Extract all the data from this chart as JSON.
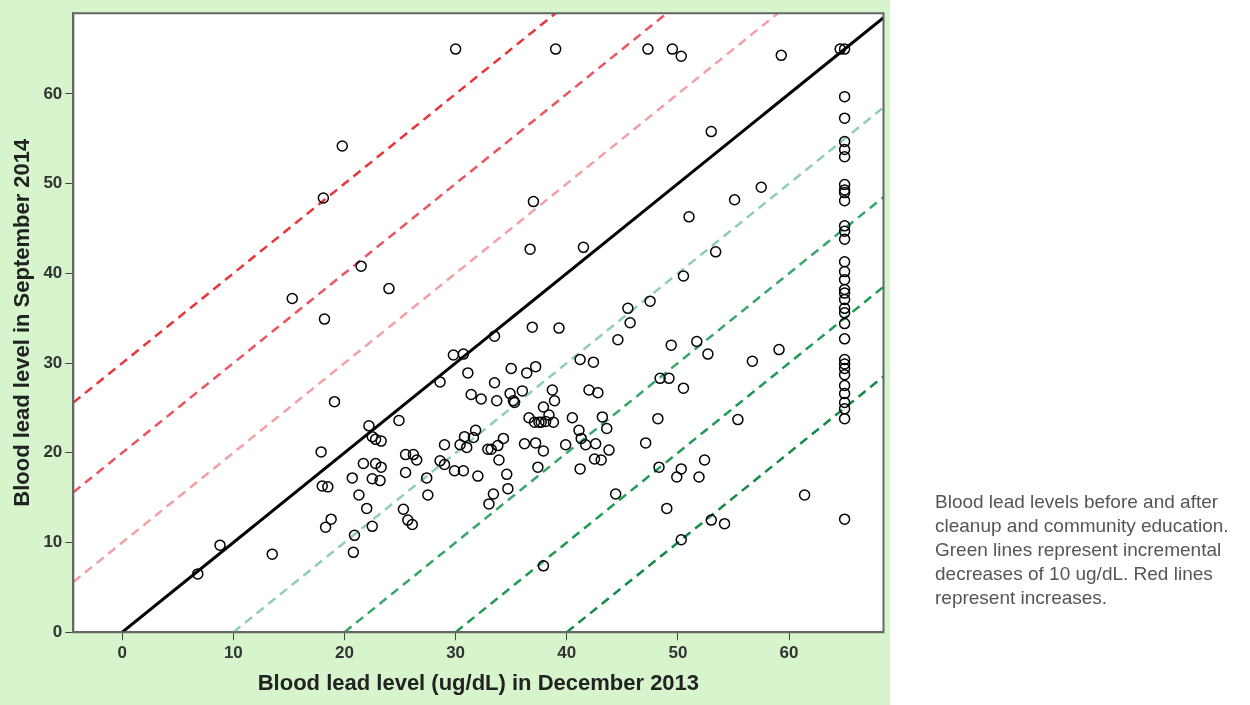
{
  "chart_data": {
    "type": "scatter",
    "xlabel": "Blood lead level (ug/dL) in December 2013",
    "ylabel": "Blood lead level in September 2014",
    "xlim": [
      -4.4,
      68.5
    ],
    "ylim": [
      0,
      69
    ],
    "xticks": [
      0,
      10,
      20,
      30,
      40,
      50,
      60
    ],
    "yticks": [
      0,
      10,
      20,
      30,
      40,
      50,
      60
    ],
    "grid": false,
    "legend": false,
    "annotations": [
      "Blood lead levels before and after cleanup and community education. Green lines represent incremental decreases of 10 ug/dL. Red lines represent increases."
    ],
    "series": [
      {
        "type": "scatter",
        "color": "#000000",
        "marker": "circle",
        "x": [
          30,
          39,
          47.3,
          49.5,
          50.3,
          59.3,
          64.6,
          65,
          19.8,
          18.1,
          15.3,
          18.2,
          21.5,
          24,
          19.1,
          17.9,
          18,
          18.5,
          18.3,
          18.8,
          8.8,
          6.8,
          13.5,
          20.8,
          20.9,
          21.3,
          20.7,
          21.7,
          22.2,
          22.5,
          22.8,
          23.3,
          22.5,
          22,
          22.5,
          22.8,
          23.2,
          23.3,
          24.9,
          25.3,
          25.5,
          25.5,
          25.7,
          26.1,
          26.2,
          26.5,
          27.4,
          27.5,
          28.6,
          28.6,
          29,
          29,
          29.8,
          29.9,
          30.4,
          30.7,
          30.8,
          31,
          30.7,
          31.1,
          31.4,
          31.6,
          31.8,
          32,
          32.3,
          32.9,
          33.2,
          33,
          33.4,
          33.5,
          33.5,
          33.7,
          33.8,
          33.9,
          34.3,
          34.6,
          34.7,
          34.9,
          35,
          35.2,
          35.3,
          36,
          36.2,
          36.4,
          36.6,
          36.7,
          36.9,
          37,
          37.1,
          37.2,
          37.2,
          37.4,
          37.5,
          37.7,
          37.9,
          37.9,
          37.9,
          38.1,
          38.4,
          38.7,
          38.9,
          38.8,
          39.3,
          39.9,
          40.5,
          41.1,
          41.2,
          41.2,
          41.3,
          41.5,
          41.7,
          42,
          42.4,
          42.5,
          42.6,
          42.8,
          43.1,
          43.2,
          43.6,
          43.8,
          44.4,
          44.6,
          45.5,
          45.7,
          47.1,
          47.5,
          48.2,
          48.3,
          48.4,
          49.2,
          49.4,
          49,
          49.9,
          50.3,
          50.3,
          50.5,
          50.5,
          51,
          51.7,
          51.9,
          52.4,
          52.7,
          53,
          53,
          53.4,
          54.2,
          55.1,
          55.4,
          56.7,
          57.5,
          59.1,
          61.4,
          65,
          65,
          65,
          65,
          65,
          65,
          65,
          65,
          65,
          65,
          65,
          65,
          65,
          65,
          65,
          65,
          65,
          65,
          65,
          65,
          65,
          65,
          65,
          65,
          65,
          65,
          65,
          65,
          65,
          65,
          65,
          65
        ],
        "values": [
          65,
          65,
          65,
          65,
          64.2,
          64.3,
          65,
          65,
          54.2,
          48.4,
          37.2,
          34.9,
          40.8,
          38.3,
          25.7,
          20.1,
          16.3,
          16.2,
          11.7,
          12.6,
          9.7,
          6.5,
          8.7,
          8.9,
          10.8,
          15.3,
          17.2,
          18.8,
          23,
          21.8,
          21.5,
          21.3,
          17.1,
          13.8,
          11.8,
          18.8,
          16.9,
          18.4,
          23.6,
          13.7,
          19.8,
          17.8,
          12.5,
          12,
          19.8,
          19.2,
          17.2,
          15.3,
          27.9,
          19.1,
          18.7,
          20.9,
          30.9,
          18,
          20.9,
          31,
          21.8,
          20.6,
          18,
          28.9,
          26.5,
          21.7,
          22.5,
          17.4,
          26,
          20.4,
          20.4,
          14.3,
          15.4,
          33,
          27.8,
          25.8,
          20.8,
          19.2,
          21.6,
          17.6,
          16,
          26.6,
          29.4,
          25.8,
          25.6,
          26.9,
          21,
          28.9,
          23.9,
          42.7,
          34,
          48,
          23.4,
          21.1,
          29.6,
          18.4,
          23.4,
          23.4,
          20.2,
          25.1,
          7.4,
          23.5,
          24.2,
          27,
          25.8,
          23.4,
          33.9,
          20.9,
          23.9,
          22.5,
          30.4,
          18.2,
          21.6,
          42.9,
          20.9,
          27,
          30.1,
          19.3,
          21,
          26.7,
          19.2,
          24,
          22.7,
          20.3,
          15.4,
          32.6,
          36.1,
          34.5,
          21.1,
          36.9,
          23.8,
          18.4,
          28.3,
          28.3,
          32,
          13.8,
          17.3,
          18.2,
          10.3,
          27.2,
          39.7,
          46.3,
          32.4,
          17.3,
          19.2,
          31,
          55.8,
          12.5,
          42.4,
          12.1,
          48.2,
          23.7,
          30.2,
          49.6,
          31.5,
          15.3,
          59.7,
          57.3,
          54.7,
          53.8,
          53,
          49.9,
          49.3,
          49,
          48.1,
          45.3,
          44.7,
          43.8,
          41.3,
          40.2,
          39.3,
          38.2,
          37.8,
          37.1,
          36.1,
          35.6,
          34.4,
          32.7,
          30.4,
          29.9,
          29.4,
          28.7,
          27.5,
          26.6,
          25.6,
          24.9,
          23.8,
          12.6
        ]
      },
      {
        "type": "line",
        "color": "#e8353a",
        "line_style": "dashed",
        "marker": "none",
        "x": [
          -4.4,
          39
        ],
        "values": [
          25.6,
          69
        ]
      },
      {
        "type": "line",
        "color": "#ea5560",
        "line_style": "dashed",
        "marker": "none",
        "x": [
          -4.4,
          49
        ],
        "values": [
          15.6,
          69
        ]
      },
      {
        "type": "line",
        "color": "#f2a0a6",
        "line_style": "dashed",
        "marker": "none",
        "x": [
          -4.4,
          59
        ],
        "values": [
          5.6,
          69
        ]
      },
      {
        "type": "line",
        "color": "#000000",
        "line_style": "solid",
        "marker": "none",
        "x": [
          0,
          68.5
        ],
        "values": [
          0,
          68.5
        ]
      },
      {
        "type": "line",
        "color": "#8fcfb0",
        "line_style": "dashed",
        "marker": "none",
        "x": [
          10,
          68.5
        ],
        "values": [
          0,
          58.5
        ]
      },
      {
        "type": "line",
        "color": "#3aa56a",
        "line_style": "dashed",
        "marker": "none",
        "x": [
          20,
          68.5
        ],
        "values": [
          0,
          48.5
        ]
      },
      {
        "type": "line",
        "color": "#1f9a55",
        "line_style": "dashed",
        "marker": "none",
        "x": [
          30,
          68.5
        ],
        "values": [
          0,
          38.5
        ]
      },
      {
        "type": "line",
        "color": "#148a48",
        "line_style": "dashed",
        "marker": "none",
        "x": [
          40,
          68.5
        ],
        "values": [
          0,
          28.5
        ]
      }
    ]
  }
}
